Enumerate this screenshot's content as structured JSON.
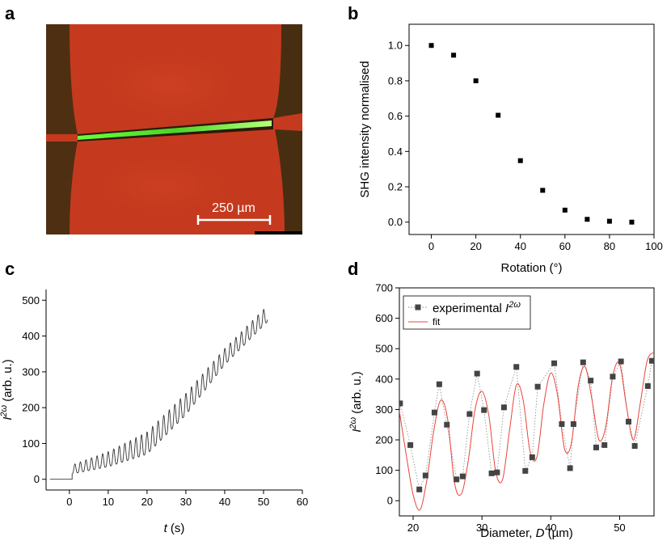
{
  "panel_labels": {
    "a": "a",
    "b": "b",
    "c": "c",
    "d": "d"
  },
  "micrograph": {
    "scale_bar_label": "250 µm",
    "colors": {
      "background": "#c53a1e",
      "wire": "#5ee63a",
      "edge": "#3a2e10"
    }
  },
  "chart_data": [
    {
      "id": "b",
      "type": "scatter",
      "title": "",
      "xlabel": "Rotation (°)",
      "ylabel": "SHG intensity normalised",
      "xlim": [
        -10,
        100
      ],
      "ylim": [
        -0.07,
        1.12
      ],
      "xticks": [
        0,
        20,
        40,
        60,
        80,
        100
      ],
      "yticks": [
        0.0,
        0.2,
        0.4,
        0.6,
        0.8,
        1.0
      ],
      "ytick_labels": [
        "0.0",
        "0.2",
        "0.4",
        "0.6",
        "0.8",
        "1.0"
      ],
      "x": [
        0,
        10,
        20,
        30,
        40,
        50,
        60,
        70,
        80,
        90
      ],
      "y": [
        1.0,
        0.945,
        0.8,
        0.605,
        0.348,
        0.18,
        0.068,
        0.016,
        0.005,
        0.0
      ],
      "grid": false,
      "color": "#000000"
    },
    {
      "id": "c",
      "type": "line",
      "xlabel": "t (s)",
      "xlabel_var": "t",
      "xlabel_unit": "(s)",
      "ylabel_var": "I",
      "ylabel_sup": "2ω",
      "ylabel_unit": "(arb. u.)",
      "xlim": [
        -6,
        60
      ],
      "ylim": [
        -30,
        530
      ],
      "xticks": [
        0,
        10,
        20,
        30,
        40,
        50,
        60
      ],
      "yticks": [
        0,
        100,
        200,
        300,
        400,
        500
      ],
      "signal": {
        "start": -5,
        "onset": 0.7,
        "end": 51,
        "period": 1.43,
        "baseline_points": [
          [
            0.7,
            15
          ],
          [
            10,
            35
          ],
          [
            20,
            70
          ],
          [
            30,
            180
          ],
          [
            40,
            320
          ],
          [
            51,
            440
          ]
        ],
        "amplitude_points": [
          [
            0.7,
            25
          ],
          [
            10,
            42
          ],
          [
            20,
            62
          ],
          [
            30,
            60
          ],
          [
            40,
            45
          ],
          [
            51,
            45
          ]
        ]
      },
      "grid": false,
      "color": "#333333"
    },
    {
      "id": "d",
      "type": "scatter",
      "xlabel_text": "Diameter, ",
      "xlabel_var": "D",
      "xlabel_unit": "(µm)",
      "ylabel_var": "I",
      "ylabel_sup": "2ω",
      "ylabel_unit": "(arb. u.)",
      "xlim": [
        18,
        55
      ],
      "ylim": [
        -50,
        700
      ],
      "xticks": [
        20,
        30,
        40,
        50
      ],
      "yticks": [
        0,
        100,
        200,
        300,
        400,
        500,
        600,
        700
      ],
      "legend": {
        "position": "top-left",
        "entries": [
          {
            "label": "experimental ",
            "var": "I",
            "sup": "2ω"
          },
          {
            "label": "fit"
          }
        ]
      },
      "series": [
        {
          "name": "experimental I2ω",
          "style": "markers+dotted",
          "color": "#444444",
          "x": [
            18.1,
            19.6,
            20.9,
            21.8,
            23.1,
            23.8,
            24.9,
            26.3,
            27.2,
            28.2,
            29.3,
            30.3,
            31.4,
            32.2,
            33.2,
            35.0,
            36.3,
            37.3,
            38.1,
            40.5,
            41.6,
            42.8,
            43.3,
            44.7,
            45.8,
            46.6,
            47.8,
            49.0,
            50.2,
            51.3,
            52.2,
            54.1,
            54.7
          ],
          "y": [
            320,
            183,
            37,
            83,
            290,
            383,
            250,
            70,
            80,
            285,
            418,
            298,
            90,
            93,
            307,
            440,
            98,
            143,
            375,
            452,
            252,
            107,
            252,
            455,
            395,
            175,
            183,
            408,
            458,
            260,
            180,
            377,
            460
          ]
        },
        {
          "name": "fit",
          "style": "line",
          "color": "#e8443a",
          "x": [
            18.0,
            19.0,
            20.0,
            21.0,
            22.0,
            23.0,
            24.0,
            25.0,
            26.0,
            27.0,
            28.0,
            29.0,
            30.0,
            31.0,
            32.0,
            33.0,
            34.0,
            35.0,
            36.0,
            37.0,
            38.0,
            39.0,
            40.0,
            41.0,
            42.0,
            43.0,
            44.0,
            45.0,
            46.0,
            47.0,
            48.0,
            49.0,
            50.0,
            51.0,
            52.0,
            53.0,
            54.0,
            55.0
          ],
          "y": [
            295,
            150,
            20,
            -30,
            70,
            230,
            330,
            270,
            60,
            22,
            130,
            300,
            360,
            280,
            95,
            70,
            230,
            380,
            330,
            160,
            145,
            320,
            420,
            345,
            170,
            190,
            380,
            440,
            330,
            200,
            245,
            410,
            450,
            310,
            200,
            320,
            460,
            488
          ]
        }
      ],
      "grid": false
    }
  ]
}
